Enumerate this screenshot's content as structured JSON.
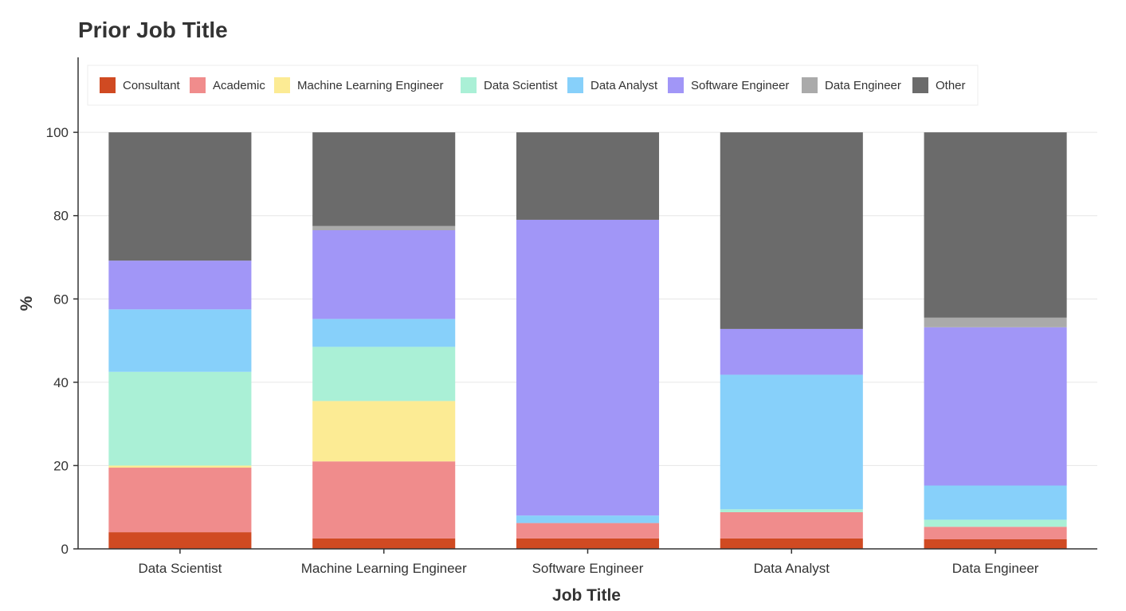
{
  "chart_data": {
    "type": "bar",
    "stacked": true,
    "title": "Prior Job Title",
    "xlabel": "Job Title",
    "ylabel": "%",
    "ylim": [
      0,
      118
    ],
    "yticks": [
      0,
      20,
      40,
      60,
      80,
      100
    ],
    "grid": true,
    "legend_position": "top",
    "categories": [
      "Data Scientist",
      "Machine Learning Engineer",
      "Software Engineer",
      "Data Analyst",
      "Data Engineer"
    ],
    "series": [
      {
        "name": "Consultant",
        "color": "#d04a22",
        "values": [
          4,
          2.5,
          2.5,
          2.5,
          2.3
        ]
      },
      {
        "name": "Academic",
        "color": "#f08c8c",
        "values": [
          15.5,
          18.5,
          3.7,
          6.3,
          3
        ]
      },
      {
        "name": "Machine Learning Engineer",
        "color": "#fceb94",
        "values": [
          0.5,
          14.5,
          0,
          0,
          0
        ]
      },
      {
        "name": "Data Scientist",
        "color": "#aaf0d6",
        "values": [
          22.5,
          13,
          0,
          0.7,
          1.7
        ]
      },
      {
        "name": "Data Analyst",
        "color": "#87d0fa",
        "values": [
          15,
          6.7,
          1.8,
          32.3,
          8.2
        ]
      },
      {
        "name": "Software Engineer",
        "color": "#a196f7",
        "values": [
          11.7,
          21.3,
          71,
          11,
          38
        ]
      },
      {
        "name": "Data Engineer",
        "color": "#aaaaaa",
        "values": [
          0,
          1,
          0,
          0,
          2.3
        ]
      },
      {
        "name": "Other",
        "color": "#6b6b6b",
        "values": [
          30.8,
          22.5,
          21,
          47.2,
          44.5
        ]
      }
    ]
  }
}
